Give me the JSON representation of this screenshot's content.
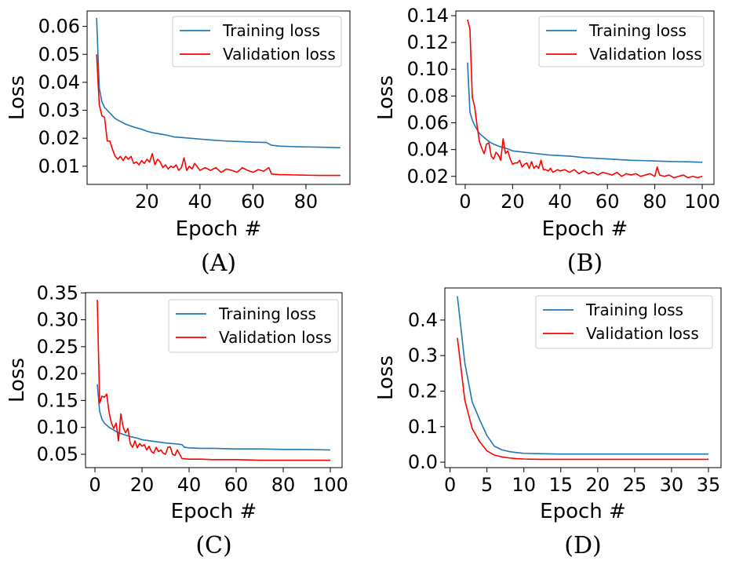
{
  "colors": {
    "training": "#1f77b4",
    "validation": "#ff0000"
  },
  "chart_data": [
    {
      "panel": "A",
      "type": "line",
      "caption": "(A)",
      "xlabel": "Epoch #",
      "ylabel": "Loss",
      "xlim": [
        -2.6,
        96.6
      ],
      "ylim": [
        0.0035,
        0.0655
      ],
      "xticks": [
        20,
        40,
        60,
        80
      ],
      "yticks": [
        0.01,
        0.02,
        0.03,
        0.04,
        0.05,
        0.06
      ],
      "ytick_labels": [
        "0.01",
        "0.02",
        "0.03",
        "0.04",
        "0.05",
        "0.06"
      ],
      "legend_position": "top-right",
      "series": [
        {
          "name": "Training loss",
          "color": "training",
          "x": [
            1,
            2,
            3,
            4,
            6,
            8,
            10,
            12,
            15,
            18,
            20,
            22,
            25,
            28,
            30,
            35,
            40,
            45,
            50,
            55,
            60,
            65,
            67,
            70,
            75,
            80,
            85,
            90,
            93
          ],
          "y": [
            0.063,
            0.038,
            0.033,
            0.031,
            0.029,
            0.027,
            0.026,
            0.025,
            0.024,
            0.0232,
            0.0225,
            0.022,
            0.0215,
            0.021,
            0.0205,
            0.0201,
            0.0197,
            0.0193,
            0.019,
            0.0188,
            0.0186,
            0.0185,
            0.0175,
            0.0172,
            0.017,
            0.0169,
            0.0168,
            0.0167,
            0.0166
          ]
        },
        {
          "name": "Validation loss",
          "color": "validation",
          "x": [
            1,
            2,
            3,
            4,
            5,
            6,
            7,
            8,
            9,
            10,
            11,
            12,
            13,
            14,
            15,
            16,
            17,
            18,
            19,
            20,
            21,
            22,
            23,
            24,
            25,
            26,
            27,
            28,
            29,
            30,
            31,
            32,
            33,
            34,
            35,
            36,
            37,
            38,
            40,
            42,
            44,
            46,
            48,
            50,
            52,
            54,
            56,
            58,
            60,
            62,
            64,
            66,
            67,
            70,
            75,
            80,
            85,
            90,
            93
          ],
          "y": [
            0.05,
            0.032,
            0.028,
            0.0275,
            0.019,
            0.019,
            0.016,
            0.0135,
            0.0125,
            0.0135,
            0.012,
            0.0135,
            0.0125,
            0.0135,
            0.011,
            0.0115,
            0.0105,
            0.012,
            0.011,
            0.0125,
            0.0115,
            0.0145,
            0.0105,
            0.0125,
            0.0115,
            0.0095,
            0.0105,
            0.009,
            0.01,
            0.0095,
            0.0105,
            0.0085,
            0.0095,
            0.013,
            0.0085,
            0.01,
            0.009,
            0.011,
            0.0085,
            0.0095,
            0.0085,
            0.0095,
            0.0078,
            0.009,
            0.0085,
            0.0078,
            0.0095,
            0.0085,
            0.0078,
            0.0088,
            0.0082,
            0.0095,
            0.0072,
            0.007,
            0.0069,
            0.0068,
            0.0067,
            0.0067,
            0.0067
          ]
        }
      ]
    },
    {
      "panel": "B",
      "type": "line",
      "caption": "(B)",
      "xlabel": "Epoch #",
      "ylabel": "Loss",
      "xlim": [
        -3.95,
        104.95
      ],
      "ylim": [
        0.014,
        0.1435
      ],
      "xticks": [
        0,
        20,
        40,
        60,
        80,
        100
      ],
      "yticks": [
        0.02,
        0.04,
        0.06,
        0.08,
        0.1,
        0.12,
        0.14
      ],
      "ytick_labels": [
        "0.02",
        "0.04",
        "0.06",
        "0.08",
        "0.10",
        "0.12",
        "0.14"
      ],
      "legend_position": "top-right",
      "series": [
        {
          "name": "Training loss",
          "color": "training",
          "x": [
            1,
            2,
            3,
            4,
            5,
            6,
            8,
            10,
            12,
            15,
            18,
            20,
            25,
            30,
            35,
            40,
            45,
            50,
            55,
            60,
            65,
            70,
            75,
            80,
            85,
            90,
            95,
            100
          ],
          "y": [
            0.105,
            0.068,
            0.062,
            0.058,
            0.055,
            0.052,
            0.049,
            0.046,
            0.044,
            0.042,
            0.0405,
            0.039,
            0.038,
            0.037,
            0.036,
            0.0355,
            0.035,
            0.034,
            0.0335,
            0.033,
            0.0325,
            0.032,
            0.0318,
            0.0315,
            0.0312,
            0.031,
            0.0308,
            0.0305
          ]
        },
        {
          "name": "Validation loss",
          "color": "validation",
          "x": [
            1,
            2,
            3,
            4,
            5,
            6,
            7,
            8,
            9,
            10,
            11,
            12,
            13,
            14,
            15,
            16,
            17,
            18,
            19,
            20,
            21,
            22,
            23,
            24,
            25,
            26,
            27,
            28,
            29,
            30,
            31,
            32,
            33,
            34,
            35,
            36,
            37,
            38,
            39,
            40,
            42,
            44,
            46,
            48,
            50,
            52,
            54,
            56,
            58,
            60,
            62,
            64,
            66,
            68,
            70,
            72,
            74,
            76,
            78,
            80,
            81,
            82,
            84,
            86,
            88,
            90,
            92,
            94,
            96,
            98,
            100
          ],
          "y": [
            0.137,
            0.13,
            0.079,
            0.072,
            0.058,
            0.046,
            0.041,
            0.037,
            0.044,
            0.045,
            0.035,
            0.033,
            0.038,
            0.036,
            0.032,
            0.048,
            0.037,
            0.039,
            0.033,
            0.029,
            0.03,
            0.03,
            0.032,
            0.027,
            0.029,
            0.03,
            0.026,
            0.031,
            0.026,
            0.028,
            0.026,
            0.032,
            0.025,
            0.025,
            0.024,
            0.026,
            0.023,
            0.024,
            0.025,
            0.024,
            0.025,
            0.023,
            0.025,
            0.022,
            0.024,
            0.022,
            0.023,
            0.021,
            0.023,
            0.022,
            0.021,
            0.023,
            0.02,
            0.022,
            0.021,
            0.022,
            0.02,
            0.021,
            0.022,
            0.02,
            0.027,
            0.021,
            0.02,
            0.021,
            0.019,
            0.02,
            0.021,
            0.019,
            0.02,
            0.019,
            0.02
          ]
        }
      ]
    },
    {
      "panel": "C",
      "type": "line",
      "caption": "(C)",
      "xlabel": "Epoch #",
      "ylabel": "Loss",
      "xlim": [
        -4.0,
        105.0
      ],
      "ylim": [
        0.0252,
        0.3504
      ],
      "xticks": [
        0,
        20,
        40,
        60,
        80,
        100
      ],
      "yticks": [
        0.05,
        0.1,
        0.15,
        0.2,
        0.25,
        0.3,
        0.35
      ],
      "ytick_labels": [
        "0.05",
        "0.10",
        "0.15",
        "0.20",
        "0.25",
        "0.30",
        "0.35"
      ],
      "legend_position": "top-right",
      "series": [
        {
          "name": "Training loss",
          "color": "training",
          "x": [
            1,
            2,
            3,
            4,
            5,
            6,
            8,
            10,
            12,
            15,
            18,
            20,
            25,
            30,
            35,
            37,
            38,
            40,
            45,
            50,
            60,
            70,
            80,
            90,
            100
          ],
          "y": [
            0.18,
            0.13,
            0.115,
            0.108,
            0.104,
            0.1,
            0.095,
            0.09,
            0.087,
            0.083,
            0.08,
            0.077,
            0.074,
            0.071,
            0.069,
            0.068,
            0.063,
            0.062,
            0.061,
            0.061,
            0.06,
            0.06,
            0.059,
            0.059,
            0.058
          ]
        },
        {
          "name": "Validation loss",
          "color": "validation",
          "x": [
            1,
            2,
            3,
            4,
            5,
            6,
            7,
            8,
            9,
            10,
            11,
            12,
            13,
            14,
            15,
            16,
            17,
            18,
            19,
            20,
            21,
            22,
            23,
            24,
            25,
            26,
            27,
            28,
            29,
            30,
            31,
            32,
            33,
            34,
            35,
            36,
            37,
            40,
            45,
            50,
            60,
            70,
            80,
            90,
            100
          ],
          "y": [
            0.337,
            0.145,
            0.158,
            0.156,
            0.162,
            0.128,
            0.108,
            0.098,
            0.108,
            0.075,
            0.125,
            0.1,
            0.09,
            0.098,
            0.07,
            0.063,
            0.075,
            0.062,
            0.07,
            0.065,
            0.068,
            0.058,
            0.065,
            0.055,
            0.052,
            0.063,
            0.055,
            0.058,
            0.052,
            0.05,
            0.063,
            0.064,
            0.05,
            0.048,
            0.058,
            0.05,
            0.042,
            0.041,
            0.041,
            0.04,
            0.04,
            0.039,
            0.039,
            0.039,
            0.039
          ]
        }
      ]
    },
    {
      "panel": "D",
      "type": "line",
      "caption": "(D)",
      "xlabel": "Epoch #",
      "ylabel": "Loss",
      "xlim": [
        -0.7,
        36.7
      ],
      "ylim": [
        -0.0153,
        0.4903
      ],
      "xticks": [
        0,
        5,
        10,
        15,
        20,
        25,
        30,
        35
      ],
      "yticks": [
        0.0,
        0.1,
        0.2,
        0.3,
        0.4
      ],
      "ytick_labels": [
        "0.0",
        "0.1",
        "0.2",
        "0.3",
        "0.4"
      ],
      "legend_position": "top-right",
      "series": [
        {
          "name": "Training loss",
          "color": "training",
          "x": [
            1,
            2,
            3,
            4,
            5,
            6,
            7,
            8,
            9,
            10,
            12,
            15,
            20,
            25,
            30,
            35
          ],
          "y": [
            0.467,
            0.28,
            0.17,
            0.12,
            0.075,
            0.045,
            0.035,
            0.03,
            0.027,
            0.025,
            0.024,
            0.023,
            0.023,
            0.023,
            0.023,
            0.023
          ]
        },
        {
          "name": "Validation loss",
          "color": "validation",
          "x": [
            1,
            2,
            3,
            4,
            5,
            6,
            7,
            8,
            9,
            10,
            12,
            15,
            20,
            25,
            30,
            35
          ],
          "y": [
            0.35,
            0.175,
            0.095,
            0.058,
            0.032,
            0.02,
            0.015,
            0.012,
            0.01,
            0.009,
            0.008,
            0.008,
            0.008,
            0.008,
            0.008,
            0.008
          ]
        }
      ]
    }
  ]
}
